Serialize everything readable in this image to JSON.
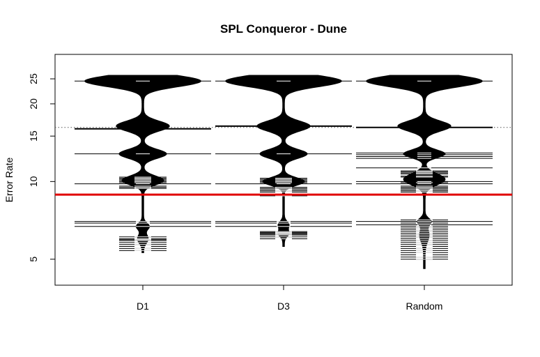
{
  "chart_data": {
    "type": "beanplot",
    "title": "SPL Conqueror - Dune",
    "xlabel": "",
    "ylabel": "Error Rate",
    "y_scale": "log",
    "ylim": [
      4.3,
      28.5
    ],
    "y_ticks": [
      5,
      10,
      15,
      20,
      25
    ],
    "y_tick_labels": [
      "5",
      "10",
      "15",
      "20",
      "25"
    ],
    "categories": [
      "D1",
      "D3",
      "Random"
    ],
    "overall_mean_line": {
      "value": 16.2,
      "style": "dotted",
      "color": "#555555"
    },
    "reference_line": {
      "value": 8.9,
      "color": "#e00000"
    },
    "beans": [
      {
        "name": "D1",
        "range": [
          5.3,
          25.8
        ],
        "mean": 16.0,
        "density_modes": [
          {
            "center": 24.5,
            "sigma": 0.05,
            "weight": 1.0
          },
          {
            "center": 16.4,
            "sigma": 0.045,
            "weight": 0.45
          },
          {
            "center": 12.8,
            "sigma": 0.04,
            "weight": 0.4
          },
          {
            "center": 10.1,
            "sigma": 0.04,
            "weight": 0.35
          },
          {
            "center": 6.7,
            "sigma": 0.03,
            "weight": 0.1
          },
          {
            "center": 6.0,
            "sigma": 0.04,
            "weight": 0.08
          }
        ],
        "wide_observations": [
          24.5,
          16.0,
          12.8,
          9.8,
          7.0,
          6.9,
          6.7
        ],
        "observations": [
          10.4,
          10.3,
          10.2,
          10.1,
          10.0,
          9.9,
          9.6,
          9.5,
          9.4,
          6.1,
          6.0,
          5.95,
          5.9,
          5.8,
          5.7,
          5.6,
          5.5,
          5.4
        ]
      },
      {
        "name": "D3",
        "range": [
          5.6,
          25.8
        ],
        "mean": 16.4,
        "density_modes": [
          {
            "center": 24.5,
            "sigma": 0.05,
            "weight": 1.0
          },
          {
            "center": 16.4,
            "sigma": 0.045,
            "weight": 0.45
          },
          {
            "center": 12.8,
            "sigma": 0.04,
            "weight": 0.4
          },
          {
            "center": 10.0,
            "sigma": 0.035,
            "weight": 0.35
          },
          {
            "center": 6.8,
            "sigma": 0.03,
            "weight": 0.08
          },
          {
            "center": 6.3,
            "sigma": 0.03,
            "weight": 0.08
          }
        ],
        "wide_observations": [
          24.5,
          16.4,
          12.8,
          9.8,
          7.0,
          6.9,
          6.7
        ],
        "observations": [
          10.3,
          10.2,
          10.1,
          10.0,
          9.9,
          9.5,
          9.4,
          9.3,
          9.2,
          9.1,
          8.9,
          8.8,
          6.4,
          6.35,
          6.3,
          6.25,
          6.2,
          6.1,
          6.0
        ]
      },
      {
        "name": "Random",
        "range": [
          4.6,
          25.8
        ],
        "mean": 16.2,
        "density_modes": [
          {
            "center": 24.5,
            "sigma": 0.05,
            "weight": 1.0
          },
          {
            "center": 16.4,
            "sigma": 0.045,
            "weight": 0.45
          },
          {
            "center": 12.8,
            "sigma": 0.035,
            "weight": 0.35
          },
          {
            "center": 10.2,
            "sigma": 0.05,
            "weight": 0.35
          },
          {
            "center": 7.0,
            "sigma": 0.03,
            "weight": 0.1
          },
          {
            "center": 6.2,
            "sigma": 0.06,
            "weight": 0.07
          }
        ],
        "wide_observations": [
          24.5,
          16.2,
          12.9,
          12.7,
          12.5,
          12.3,
          11.3,
          10.0,
          9.8,
          7.0,
          6.8
        ],
        "observations": [
          11.0,
          10.9,
          10.8,
          10.7,
          10.5,
          10.4,
          10.0,
          9.9,
          9.6,
          9.5,
          9.4,
          9.3,
          9.2,
          9.1,
          7.1,
          7.0,
          6.9,
          6.8,
          6.7,
          6.6,
          6.5,
          6.4,
          6.3,
          6.2,
          6.1,
          6.0,
          5.9,
          5.8,
          5.7,
          5.6,
          5.5,
          5.4,
          5.3,
          5.2,
          5.1,
          5.0
        ]
      }
    ]
  }
}
